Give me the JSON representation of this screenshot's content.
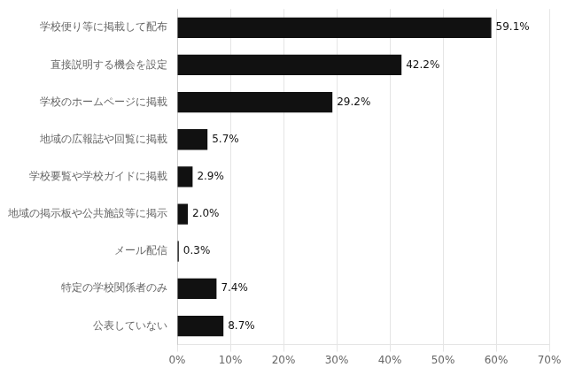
{
  "chart_data": {
    "type": "bar",
    "orientation": "horizontal",
    "categories": [
      "公表していない",
      "特定の学校関係者のみ",
      "メール配信",
      "地域の掲示板や公共施設等に掲示",
      "学校要覧や学校ガイドに掲載",
      "地域の広報誌や回覧に掲載",
      "学校のホームページに掲載",
      "直接説明する機会を設定",
      "学校便り等に掲載して配布"
    ],
    "values": [
      8.7,
      7.4,
      0.3,
      2.0,
      2.9,
      5.7,
      29.2,
      42.2,
      59.1
    ],
    "value_labels": [
      "8.7%",
      "7.4%",
      "0.3%",
      "2.0%",
      "2.9%",
      "5.7%",
      "29.2%",
      "42.2%",
      "59.1%"
    ],
    "data_labels": true,
    "color": "#111111",
    "xlim": [
      0,
      70
    ],
    "xticks": [
      {
        "value": 0,
        "label": "0%"
      },
      {
        "value": 10,
        "label": "10%"
      },
      {
        "value": 20,
        "label": "20%"
      },
      {
        "value": 30,
        "label": "30%"
      },
      {
        "value": 40,
        "label": "40%"
      },
      {
        "value": 50,
        "label": "50%"
      },
      {
        "value": 60,
        "label": "60%"
      },
      {
        "value": 70,
        "label": "70%"
      }
    ],
    "grid": true
  }
}
